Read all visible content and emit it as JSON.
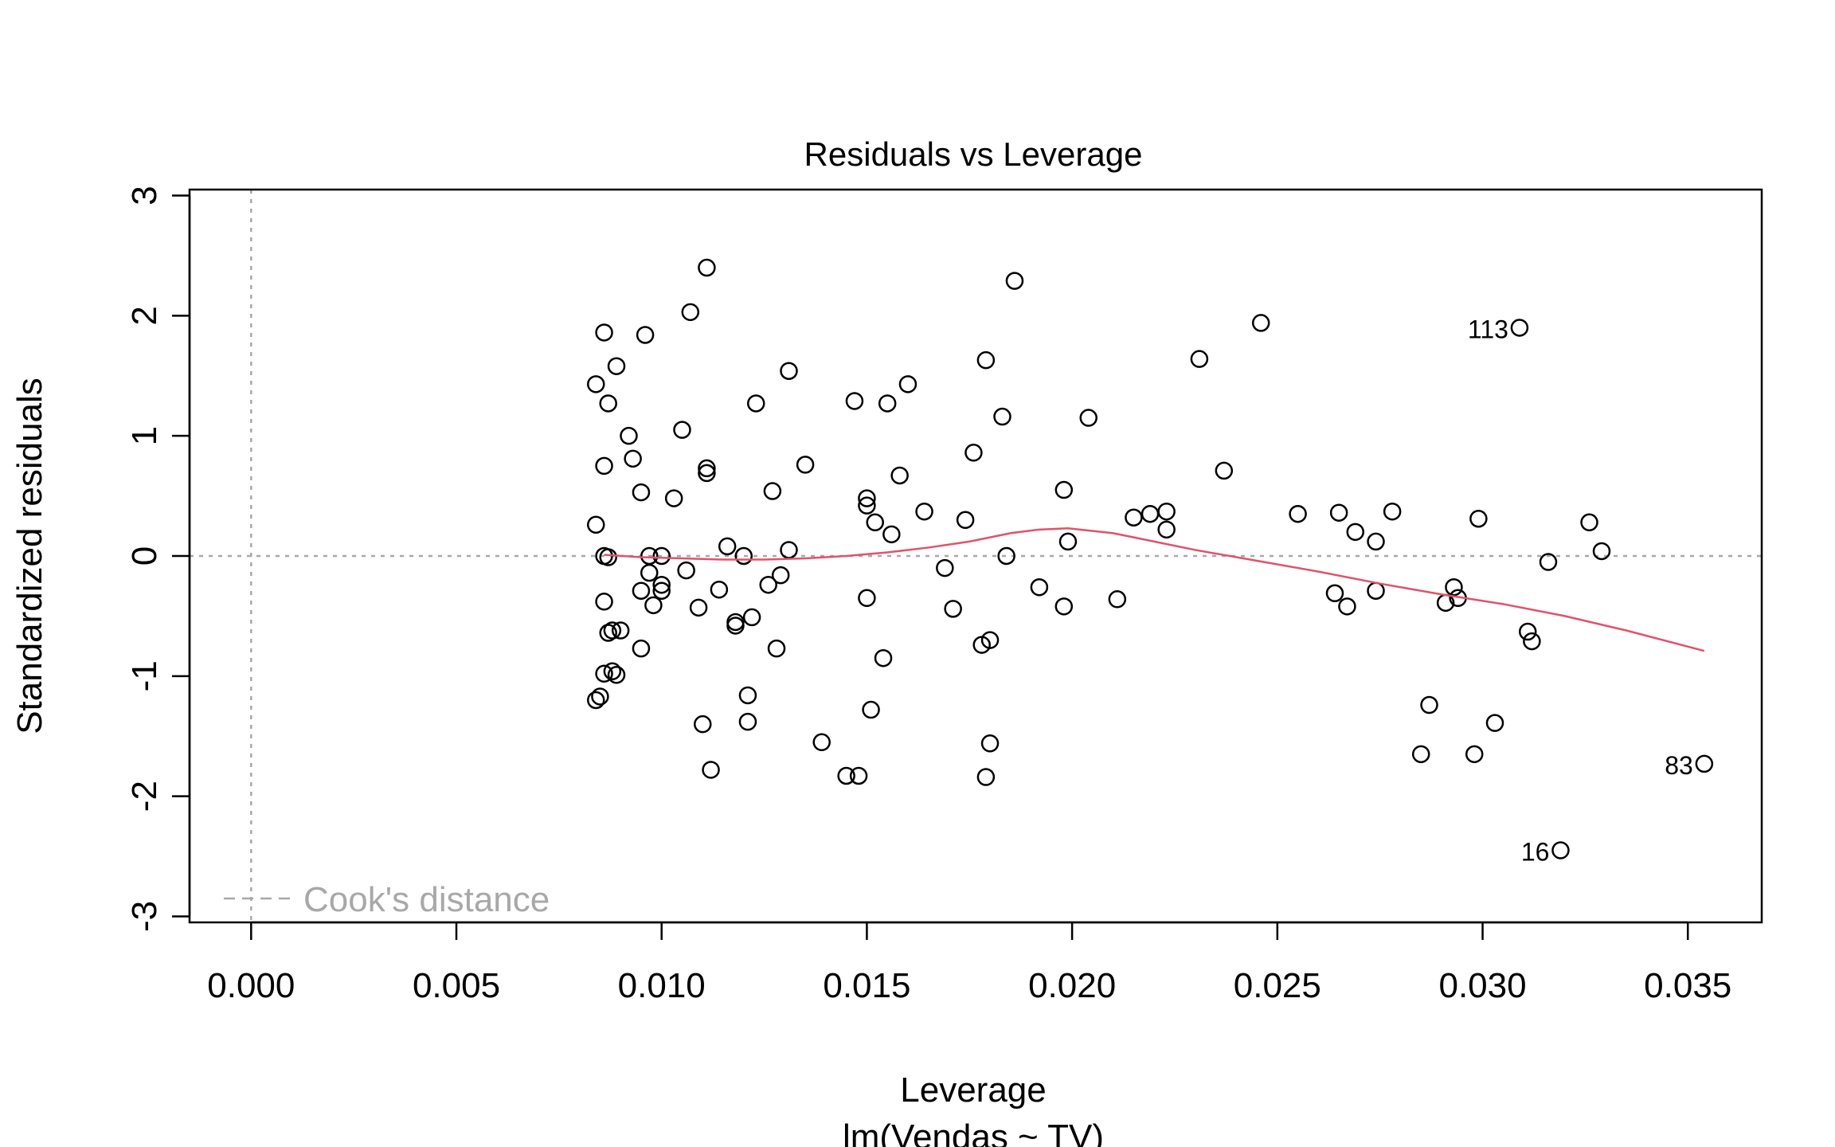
{
  "chart_data": {
    "type": "scatter",
    "title": "Residuals vs Leverage",
    "xlabel": "Leverage",
    "subtitle": "lm(Vendas ~ TV)",
    "ylabel": "Standardized residuals",
    "xlim": [
      -0.0015,
      0.0368
    ],
    "ylim": [
      -3.05,
      3.05
    ],
    "x_ticks": [
      0.0,
      0.005,
      0.01,
      0.015,
      0.02,
      0.025,
      0.03,
      0.035
    ],
    "x_tick_labels": [
      "0.000",
      "0.005",
      "0.010",
      "0.015",
      "0.020",
      "0.025",
      "0.030",
      "0.035"
    ],
    "y_ticks": [
      -3,
      -2,
      -1,
      0,
      1,
      2,
      3
    ],
    "y_tick_labels": [
      "-3",
      "-2",
      "-1",
      "0",
      "1",
      "2",
      "3"
    ],
    "legend": {
      "label": "Cook's distance",
      "position": "bottom-left"
    },
    "colors": {
      "points": "#000000",
      "smooth": "#df536b",
      "reference": "#a8a8a8"
    },
    "points": [
      {
        "x": 0.0084,
        "y": 1.43
      },
      {
        "x": 0.0084,
        "y": 0.26
      },
      {
        "x": 0.0084,
        "y": -1.2
      },
      {
        "x": 0.0085,
        "y": -1.17
      },
      {
        "x": 0.0086,
        "y": 1.86
      },
      {
        "x": 0.0086,
        "y": 0.75
      },
      {
        "x": 0.0086,
        "y": 0.0
      },
      {
        "x": 0.0086,
        "y": -0.38
      },
      {
        "x": 0.0086,
        "y": -0.98
      },
      {
        "x": 0.0087,
        "y": 1.27
      },
      {
        "x": 0.0087,
        "y": -0.01
      },
      {
        "x": 0.0087,
        "y": -0.64
      },
      {
        "x": 0.0088,
        "y": -0.62
      },
      {
        "x": 0.0088,
        "y": -0.96
      },
      {
        "x": 0.0089,
        "y": 1.58
      },
      {
        "x": 0.0089,
        "y": -0.99
      },
      {
        "x": 0.009,
        "y": -0.62
      },
      {
        "x": 0.0092,
        "y": 1.0
      },
      {
        "x": 0.0093,
        "y": 0.81
      },
      {
        "x": 0.0095,
        "y": 0.53
      },
      {
        "x": 0.0095,
        "y": -0.29
      },
      {
        "x": 0.0095,
        "y": -0.77
      },
      {
        "x": 0.0096,
        "y": 1.84
      },
      {
        "x": 0.0097,
        "y": -0.14
      },
      {
        "x": 0.0097,
        "y": 0.0
      },
      {
        "x": 0.0098,
        "y": -0.41
      },
      {
        "x": 0.01,
        "y": 0.0
      },
      {
        "x": 0.01,
        "y": -0.29
      },
      {
        "x": 0.01,
        "y": -0.24
      },
      {
        "x": 0.0103,
        "y": 0.48
      },
      {
        "x": 0.0105,
        "y": 1.05
      },
      {
        "x": 0.0106,
        "y": -0.12
      },
      {
        "x": 0.0107,
        "y": 2.03
      },
      {
        "x": 0.0109,
        "y": -0.43
      },
      {
        "x": 0.011,
        "y": -1.4
      },
      {
        "x": 0.0111,
        "y": 2.4
      },
      {
        "x": 0.0111,
        "y": 0.73
      },
      {
        "x": 0.0111,
        "y": 0.69
      },
      {
        "x": 0.0112,
        "y": -1.78
      },
      {
        "x": 0.0114,
        "y": -0.28
      },
      {
        "x": 0.0116,
        "y": 0.08
      },
      {
        "x": 0.0118,
        "y": -0.55
      },
      {
        "x": 0.0118,
        "y": -0.58
      },
      {
        "x": 0.012,
        "y": 0.0
      },
      {
        "x": 0.0121,
        "y": -1.16
      },
      {
        "x": 0.0121,
        "y": -1.38
      },
      {
        "x": 0.0122,
        "y": -0.51
      },
      {
        "x": 0.0123,
        "y": 1.27
      },
      {
        "x": 0.0126,
        "y": -0.24
      },
      {
        "x": 0.0127,
        "y": 0.54
      },
      {
        "x": 0.0128,
        "y": -0.77
      },
      {
        "x": 0.0129,
        "y": -0.16
      },
      {
        "x": 0.0131,
        "y": 1.54
      },
      {
        "x": 0.0131,
        "y": 0.05
      },
      {
        "x": 0.0135,
        "y": 0.76
      },
      {
        "x": 0.0139,
        "y": -1.55
      },
      {
        "x": 0.0145,
        "y": -1.83
      },
      {
        "x": 0.0147,
        "y": 1.29
      },
      {
        "x": 0.0148,
        "y": -1.83
      },
      {
        "x": 0.015,
        "y": 0.48
      },
      {
        "x": 0.015,
        "y": 0.42
      },
      {
        "x": 0.015,
        "y": -0.35
      },
      {
        "x": 0.0151,
        "y": -1.28
      },
      {
        "x": 0.0152,
        "y": 0.28
      },
      {
        "x": 0.0154,
        "y": -0.85
      },
      {
        "x": 0.0155,
        "y": 1.27
      },
      {
        "x": 0.0156,
        "y": 0.18
      },
      {
        "x": 0.0158,
        "y": 0.67
      },
      {
        "x": 0.016,
        "y": 1.43
      },
      {
        "x": 0.0164,
        "y": 0.37
      },
      {
        "x": 0.0169,
        "y": -0.1
      },
      {
        "x": 0.0171,
        "y": -0.44
      },
      {
        "x": 0.0174,
        "y": 0.3
      },
      {
        "x": 0.0176,
        "y": 0.86
      },
      {
        "x": 0.0178,
        "y": -0.74
      },
      {
        "x": 0.0179,
        "y": -1.84
      },
      {
        "x": 0.0179,
        "y": 1.63
      },
      {
        "x": 0.018,
        "y": -0.7
      },
      {
        "x": 0.018,
        "y": -1.56
      },
      {
        "x": 0.0183,
        "y": 1.16
      },
      {
        "x": 0.0184,
        "y": 0.0
      },
      {
        "x": 0.0186,
        "y": 2.29
      },
      {
        "x": 0.0192,
        "y": -0.26
      },
      {
        "x": 0.0198,
        "y": 0.55
      },
      {
        "x": 0.0198,
        "y": -0.42
      },
      {
        "x": 0.0199,
        "y": 0.12
      },
      {
        "x": 0.0204,
        "y": 1.15
      },
      {
        "x": 0.0211,
        "y": -0.36
      },
      {
        "x": 0.0215,
        "y": 0.32
      },
      {
        "x": 0.0219,
        "y": 0.35
      },
      {
        "x": 0.0223,
        "y": 0.37
      },
      {
        "x": 0.0223,
        "y": 0.22
      },
      {
        "x": 0.0231,
        "y": 1.64
      },
      {
        "x": 0.0237,
        "y": 0.71
      },
      {
        "x": 0.0246,
        "y": 1.94
      },
      {
        "x": 0.0255,
        "y": 0.35
      },
      {
        "x": 0.0264,
        "y": -0.31
      },
      {
        "x": 0.0265,
        "y": 0.36
      },
      {
        "x": 0.0267,
        "y": -0.42
      },
      {
        "x": 0.0269,
        "y": 0.2
      },
      {
        "x": 0.0274,
        "y": -0.29
      },
      {
        "x": 0.0274,
        "y": 0.12
      },
      {
        "x": 0.0278,
        "y": 0.37
      },
      {
        "x": 0.0285,
        "y": -1.65
      },
      {
        "x": 0.0287,
        "y": -1.24
      },
      {
        "x": 0.0291,
        "y": -0.39
      },
      {
        "x": 0.0293,
        "y": -0.26
      },
      {
        "x": 0.0294,
        "y": -0.35
      },
      {
        "x": 0.0298,
        "y": -1.65
      },
      {
        "x": 0.0299,
        "y": 0.31
      },
      {
        "x": 0.0303,
        "y": -1.39
      },
      {
        "x": 0.0309,
        "y": 1.9
      },
      {
        "x": 0.0311,
        "y": -0.63
      },
      {
        "x": 0.0312,
        "y": -0.71
      },
      {
        "x": 0.0316,
        "y": -0.05
      },
      {
        "x": 0.0319,
        "y": -2.45
      },
      {
        "x": 0.0326,
        "y": 0.28
      },
      {
        "x": 0.0329,
        "y": 0.04
      },
      {
        "x": 0.0354,
        "y": -1.73
      }
    ],
    "point_labels": [
      {
        "text": "113",
        "x": 0.0309,
        "y": 1.9,
        "side": "left"
      },
      {
        "text": "83",
        "x": 0.0354,
        "y": -1.73,
        "side": "left"
      },
      {
        "text": "16",
        "x": 0.0319,
        "y": -2.45,
        "side": "left"
      }
    ],
    "smooth_line": [
      {
        "x": 0.0086,
        "y": 0.01
      },
      {
        "x": 0.0095,
        "y": -0.01
      },
      {
        "x": 0.0105,
        "y": -0.02
      },
      {
        "x": 0.0115,
        "y": -0.03
      },
      {
        "x": 0.0125,
        "y": -0.03
      },
      {
        "x": 0.0135,
        "y": -0.02
      },
      {
        "x": 0.0145,
        "y": 0.0
      },
      {
        "x": 0.0155,
        "y": 0.03
      },
      {
        "x": 0.0165,
        "y": 0.07
      },
      {
        "x": 0.0175,
        "y": 0.12
      },
      {
        "x": 0.0185,
        "y": 0.19
      },
      {
        "x": 0.0192,
        "y": 0.22
      },
      {
        "x": 0.0199,
        "y": 0.23
      },
      {
        "x": 0.021,
        "y": 0.19
      },
      {
        "x": 0.022,
        "y": 0.12
      },
      {
        "x": 0.023,
        "y": 0.05
      },
      {
        "x": 0.0245,
        "y": -0.04
      },
      {
        "x": 0.026,
        "y": -0.13
      },
      {
        "x": 0.0275,
        "y": -0.23
      },
      {
        "x": 0.029,
        "y": -0.32
      },
      {
        "x": 0.0305,
        "y": -0.4
      },
      {
        "x": 0.032,
        "y": -0.5
      },
      {
        "x": 0.0335,
        "y": -0.62
      },
      {
        "x": 0.0354,
        "y": -0.79
      }
    ]
  }
}
